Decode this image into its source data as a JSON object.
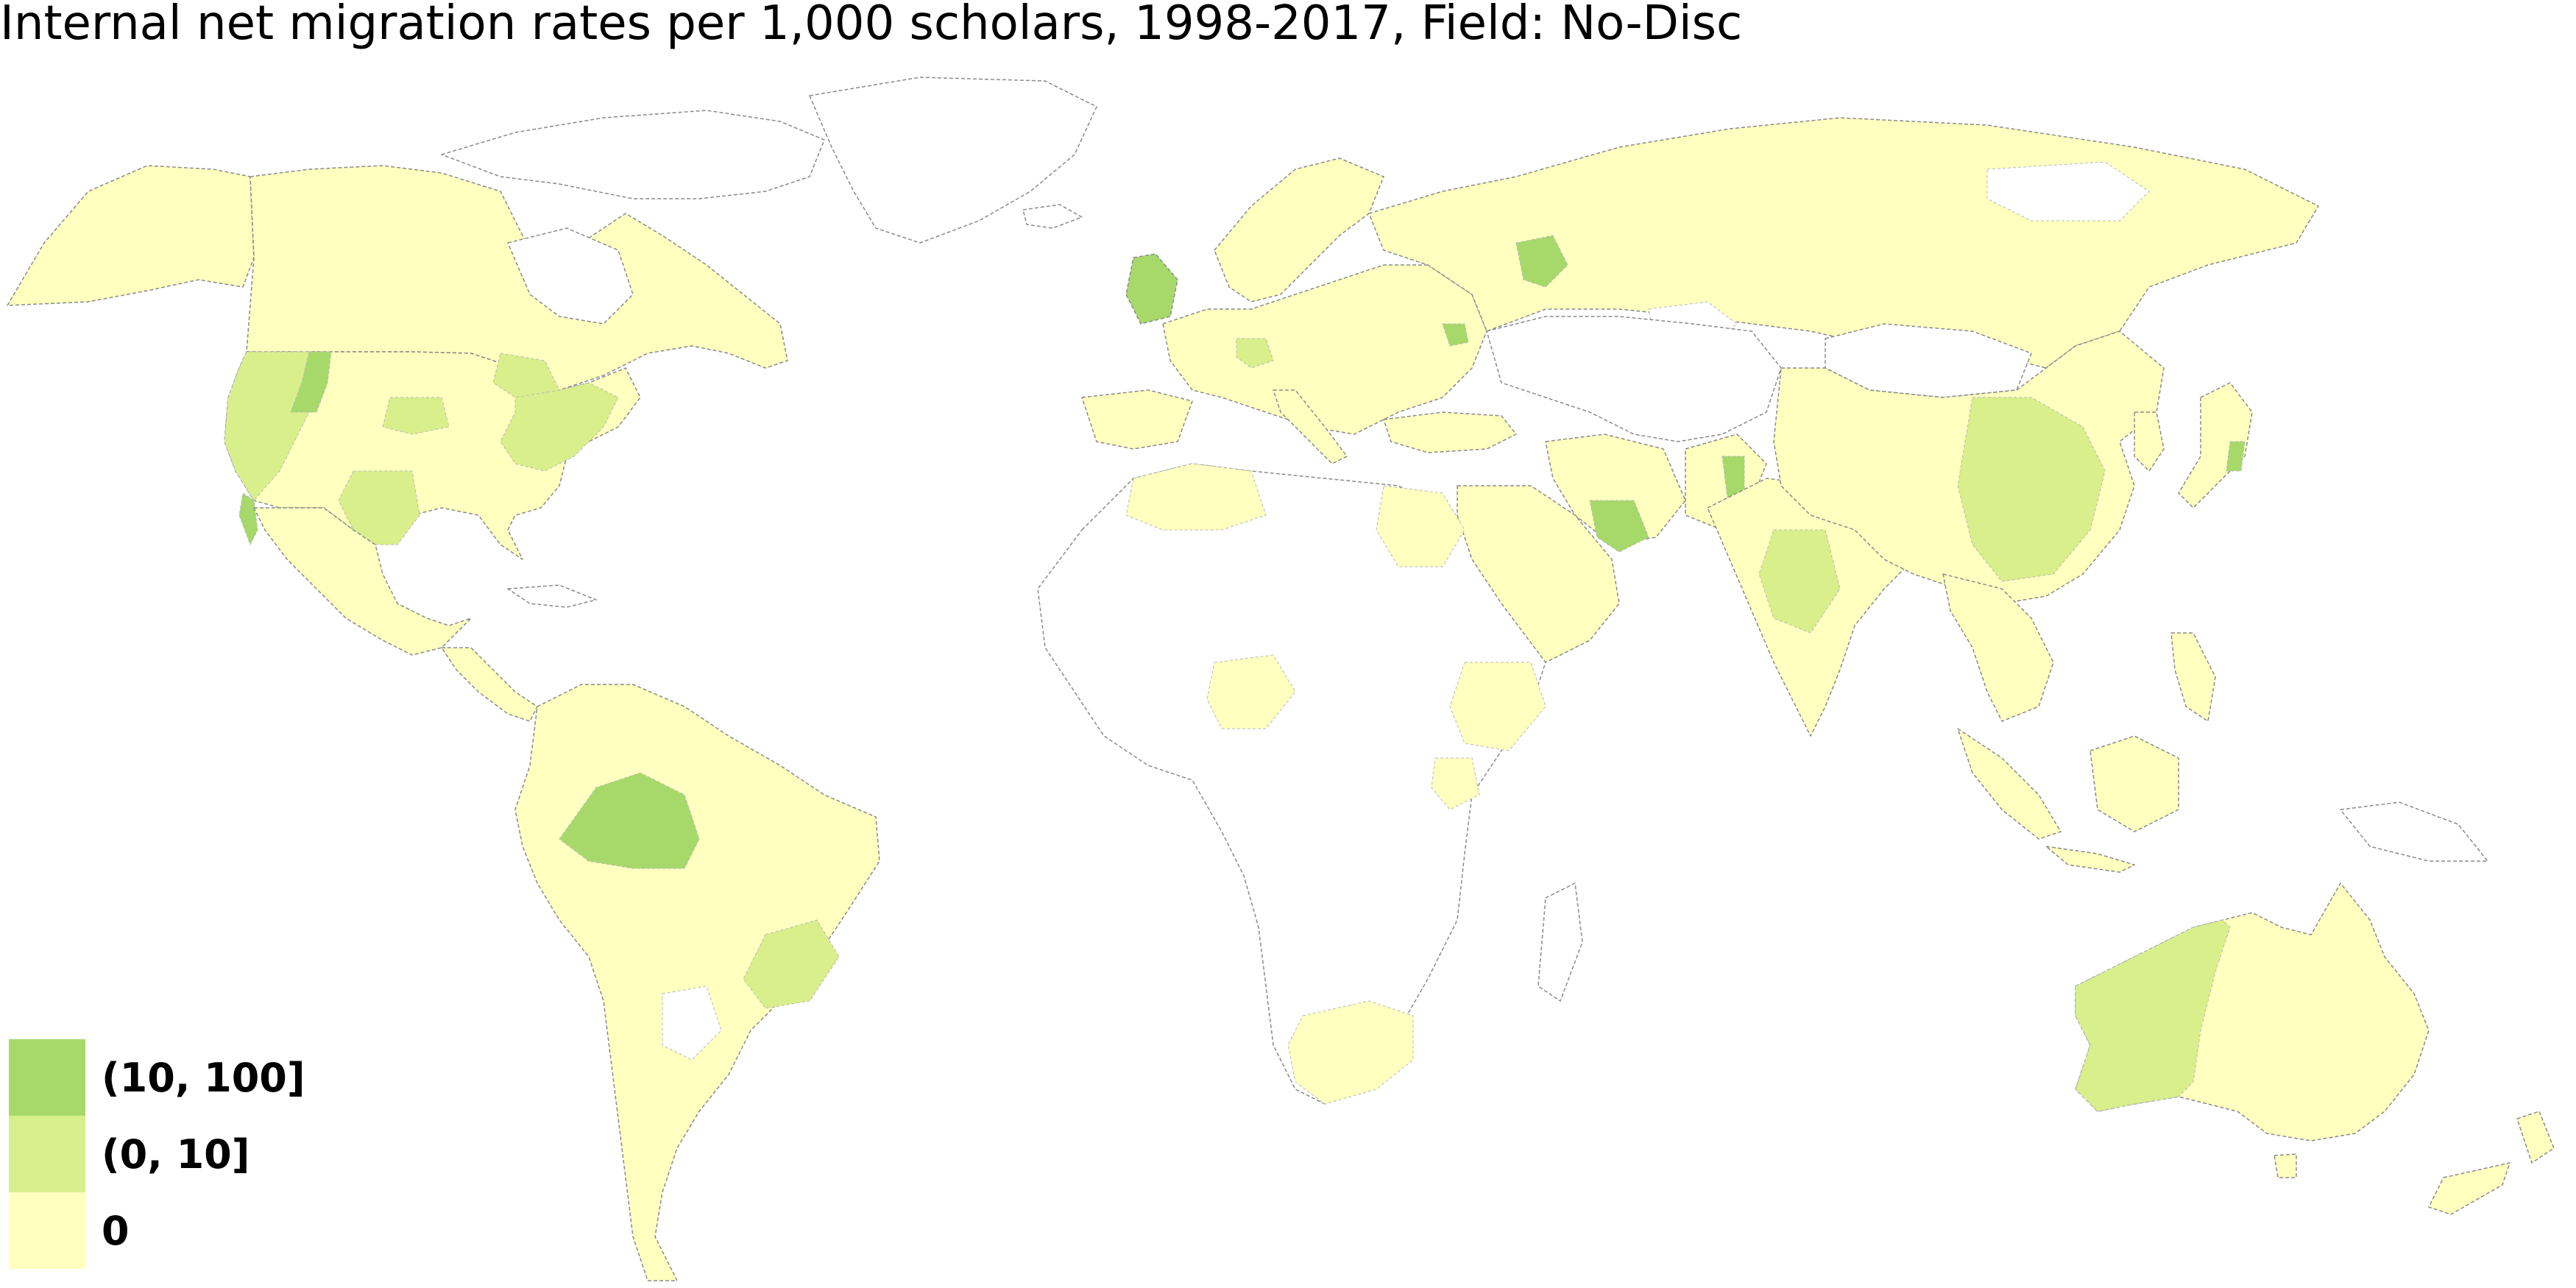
{
  "title": "Internal net migration rates per 1,000 scholars, 1998-2017, Field: No-Disc",
  "colors": {
    "high": "#a6d96a",
    "mid": "#d9ef8b",
    "zero": "#ffffbf",
    "nodata": "#ffffff",
    "border": "#8a8a8a"
  },
  "legend": [
    {
      "label": "(10, 100]",
      "color": "#a6d96a"
    },
    {
      "label": "(0, 10]",
      "color": "#d9ef8b"
    },
    {
      "label": "0",
      "color": "#ffffbf"
    }
  ]
}
